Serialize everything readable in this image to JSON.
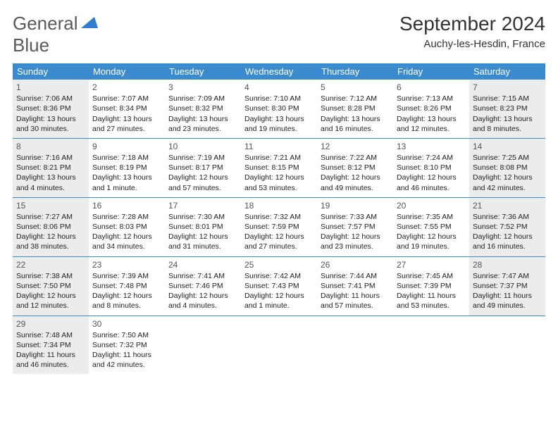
{
  "logo": {
    "word1": "General",
    "word2": "Blue"
  },
  "title": "September 2024",
  "location": "Auchy-les-Hesdin, France",
  "headers_bg": "#3a8ad0",
  "headers_color": "#ffffff",
  "shade_color": "#ececec",
  "day_labels": [
    "Sunday",
    "Monday",
    "Tuesday",
    "Wednesday",
    "Thursday",
    "Friday",
    "Saturday"
  ],
  "weeks": [
    [
      {
        "n": "1",
        "shade": true,
        "sr": "Sunrise: 7:06 AM",
        "ss": "Sunset: 8:36 PM",
        "d1": "Daylight: 13 hours",
        "d2": "and 30 minutes."
      },
      {
        "n": "2",
        "shade": false,
        "sr": "Sunrise: 7:07 AM",
        "ss": "Sunset: 8:34 PM",
        "d1": "Daylight: 13 hours",
        "d2": "and 27 minutes."
      },
      {
        "n": "3",
        "shade": false,
        "sr": "Sunrise: 7:09 AM",
        "ss": "Sunset: 8:32 PM",
        "d1": "Daylight: 13 hours",
        "d2": "and 23 minutes."
      },
      {
        "n": "4",
        "shade": false,
        "sr": "Sunrise: 7:10 AM",
        "ss": "Sunset: 8:30 PM",
        "d1": "Daylight: 13 hours",
        "d2": "and 19 minutes."
      },
      {
        "n": "5",
        "shade": false,
        "sr": "Sunrise: 7:12 AM",
        "ss": "Sunset: 8:28 PM",
        "d1": "Daylight: 13 hours",
        "d2": "and 16 minutes."
      },
      {
        "n": "6",
        "shade": false,
        "sr": "Sunrise: 7:13 AM",
        "ss": "Sunset: 8:26 PM",
        "d1": "Daylight: 13 hours",
        "d2": "and 12 minutes."
      },
      {
        "n": "7",
        "shade": true,
        "sr": "Sunrise: 7:15 AM",
        "ss": "Sunset: 8:23 PM",
        "d1": "Daylight: 13 hours",
        "d2": "and 8 minutes."
      }
    ],
    [
      {
        "n": "8",
        "shade": true,
        "sr": "Sunrise: 7:16 AM",
        "ss": "Sunset: 8:21 PM",
        "d1": "Daylight: 13 hours",
        "d2": "and 4 minutes."
      },
      {
        "n": "9",
        "shade": false,
        "sr": "Sunrise: 7:18 AM",
        "ss": "Sunset: 8:19 PM",
        "d1": "Daylight: 13 hours",
        "d2": "and 1 minute."
      },
      {
        "n": "10",
        "shade": false,
        "sr": "Sunrise: 7:19 AM",
        "ss": "Sunset: 8:17 PM",
        "d1": "Daylight: 12 hours",
        "d2": "and 57 minutes."
      },
      {
        "n": "11",
        "shade": false,
        "sr": "Sunrise: 7:21 AM",
        "ss": "Sunset: 8:15 PM",
        "d1": "Daylight: 12 hours",
        "d2": "and 53 minutes."
      },
      {
        "n": "12",
        "shade": false,
        "sr": "Sunrise: 7:22 AM",
        "ss": "Sunset: 8:12 PM",
        "d1": "Daylight: 12 hours",
        "d2": "and 49 minutes."
      },
      {
        "n": "13",
        "shade": false,
        "sr": "Sunrise: 7:24 AM",
        "ss": "Sunset: 8:10 PM",
        "d1": "Daylight: 12 hours",
        "d2": "and 46 minutes."
      },
      {
        "n": "14",
        "shade": true,
        "sr": "Sunrise: 7:25 AM",
        "ss": "Sunset: 8:08 PM",
        "d1": "Daylight: 12 hours",
        "d2": "and 42 minutes."
      }
    ],
    [
      {
        "n": "15",
        "shade": true,
        "sr": "Sunrise: 7:27 AM",
        "ss": "Sunset: 8:06 PM",
        "d1": "Daylight: 12 hours",
        "d2": "and 38 minutes."
      },
      {
        "n": "16",
        "shade": false,
        "sr": "Sunrise: 7:28 AM",
        "ss": "Sunset: 8:03 PM",
        "d1": "Daylight: 12 hours",
        "d2": "and 34 minutes."
      },
      {
        "n": "17",
        "shade": false,
        "sr": "Sunrise: 7:30 AM",
        "ss": "Sunset: 8:01 PM",
        "d1": "Daylight: 12 hours",
        "d2": "and 31 minutes."
      },
      {
        "n": "18",
        "shade": false,
        "sr": "Sunrise: 7:32 AM",
        "ss": "Sunset: 7:59 PM",
        "d1": "Daylight: 12 hours",
        "d2": "and 27 minutes."
      },
      {
        "n": "19",
        "shade": false,
        "sr": "Sunrise: 7:33 AM",
        "ss": "Sunset: 7:57 PM",
        "d1": "Daylight: 12 hours",
        "d2": "and 23 minutes."
      },
      {
        "n": "20",
        "shade": false,
        "sr": "Sunrise: 7:35 AM",
        "ss": "Sunset: 7:55 PM",
        "d1": "Daylight: 12 hours",
        "d2": "and 19 minutes."
      },
      {
        "n": "21",
        "shade": true,
        "sr": "Sunrise: 7:36 AM",
        "ss": "Sunset: 7:52 PM",
        "d1": "Daylight: 12 hours",
        "d2": "and 16 minutes."
      }
    ],
    [
      {
        "n": "22",
        "shade": true,
        "sr": "Sunrise: 7:38 AM",
        "ss": "Sunset: 7:50 PM",
        "d1": "Daylight: 12 hours",
        "d2": "and 12 minutes."
      },
      {
        "n": "23",
        "shade": false,
        "sr": "Sunrise: 7:39 AM",
        "ss": "Sunset: 7:48 PM",
        "d1": "Daylight: 12 hours",
        "d2": "and 8 minutes."
      },
      {
        "n": "24",
        "shade": false,
        "sr": "Sunrise: 7:41 AM",
        "ss": "Sunset: 7:46 PM",
        "d1": "Daylight: 12 hours",
        "d2": "and 4 minutes."
      },
      {
        "n": "25",
        "shade": false,
        "sr": "Sunrise: 7:42 AM",
        "ss": "Sunset: 7:43 PM",
        "d1": "Daylight: 12 hours",
        "d2": "and 1 minute."
      },
      {
        "n": "26",
        "shade": false,
        "sr": "Sunrise: 7:44 AM",
        "ss": "Sunset: 7:41 PM",
        "d1": "Daylight: 11 hours",
        "d2": "and 57 minutes."
      },
      {
        "n": "27",
        "shade": false,
        "sr": "Sunrise: 7:45 AM",
        "ss": "Sunset: 7:39 PM",
        "d1": "Daylight: 11 hours",
        "d2": "and 53 minutes."
      },
      {
        "n": "28",
        "shade": true,
        "sr": "Sunrise: 7:47 AM",
        "ss": "Sunset: 7:37 PM",
        "d1": "Daylight: 11 hours",
        "d2": "and 49 minutes."
      }
    ],
    [
      {
        "n": "29",
        "shade": true,
        "sr": "Sunrise: 7:48 AM",
        "ss": "Sunset: 7:34 PM",
        "d1": "Daylight: 11 hours",
        "d2": "and 46 minutes."
      },
      {
        "n": "30",
        "shade": false,
        "sr": "Sunrise: 7:50 AM",
        "ss": "Sunset: 7:32 PM",
        "d1": "Daylight: 11 hours",
        "d2": "and 42 minutes."
      },
      {
        "empty": true
      },
      {
        "empty": true
      },
      {
        "empty": true
      },
      {
        "empty": true
      },
      {
        "empty": true
      }
    ]
  ]
}
